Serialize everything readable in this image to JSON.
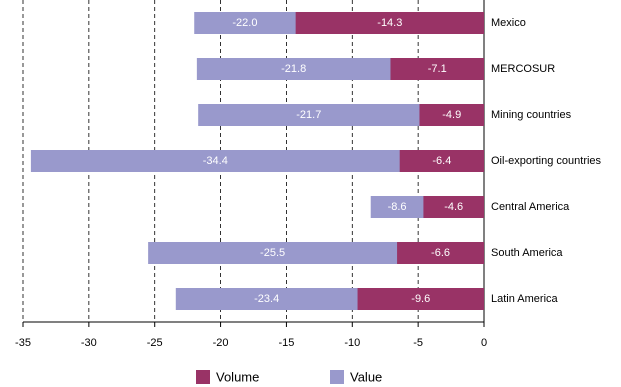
{
  "chart_data": {
    "type": "overlap-hbar",
    "categories": [
      "Mexico",
      "MERCOSUR",
      "Mining countries",
      "Oil-exporting countries",
      "Central America",
      "South America",
      "Latin America"
    ],
    "series": [
      {
        "name": "Volume",
        "color": "#993366",
        "values": [
          -14.3,
          -7.1,
          -4.9,
          -6.4,
          -4.6,
          -6.6,
          -9.6
        ],
        "value_labels": [
          "-14.3",
          "-7.1",
          "-4.9",
          "-6.4",
          "-4.6",
          "-6.6",
          "-9.6"
        ]
      },
      {
        "name": "Value",
        "color": "#9999cc",
        "values": [
          -22.0,
          -21.8,
          -21.7,
          -34.4,
          -8.6,
          -25.5,
          -23.4
        ],
        "value_labels": [
          "-22.0",
          "-21.8",
          "-21.7",
          "-34.4",
          "-8.6",
          "-25.5",
          "-23.4"
        ]
      }
    ],
    "xlim": [
      -35,
      0
    ],
    "xticks": [
      -35,
      -30,
      -25,
      -20,
      -15,
      -10,
      -5,
      0
    ],
    "grid": true
  }
}
